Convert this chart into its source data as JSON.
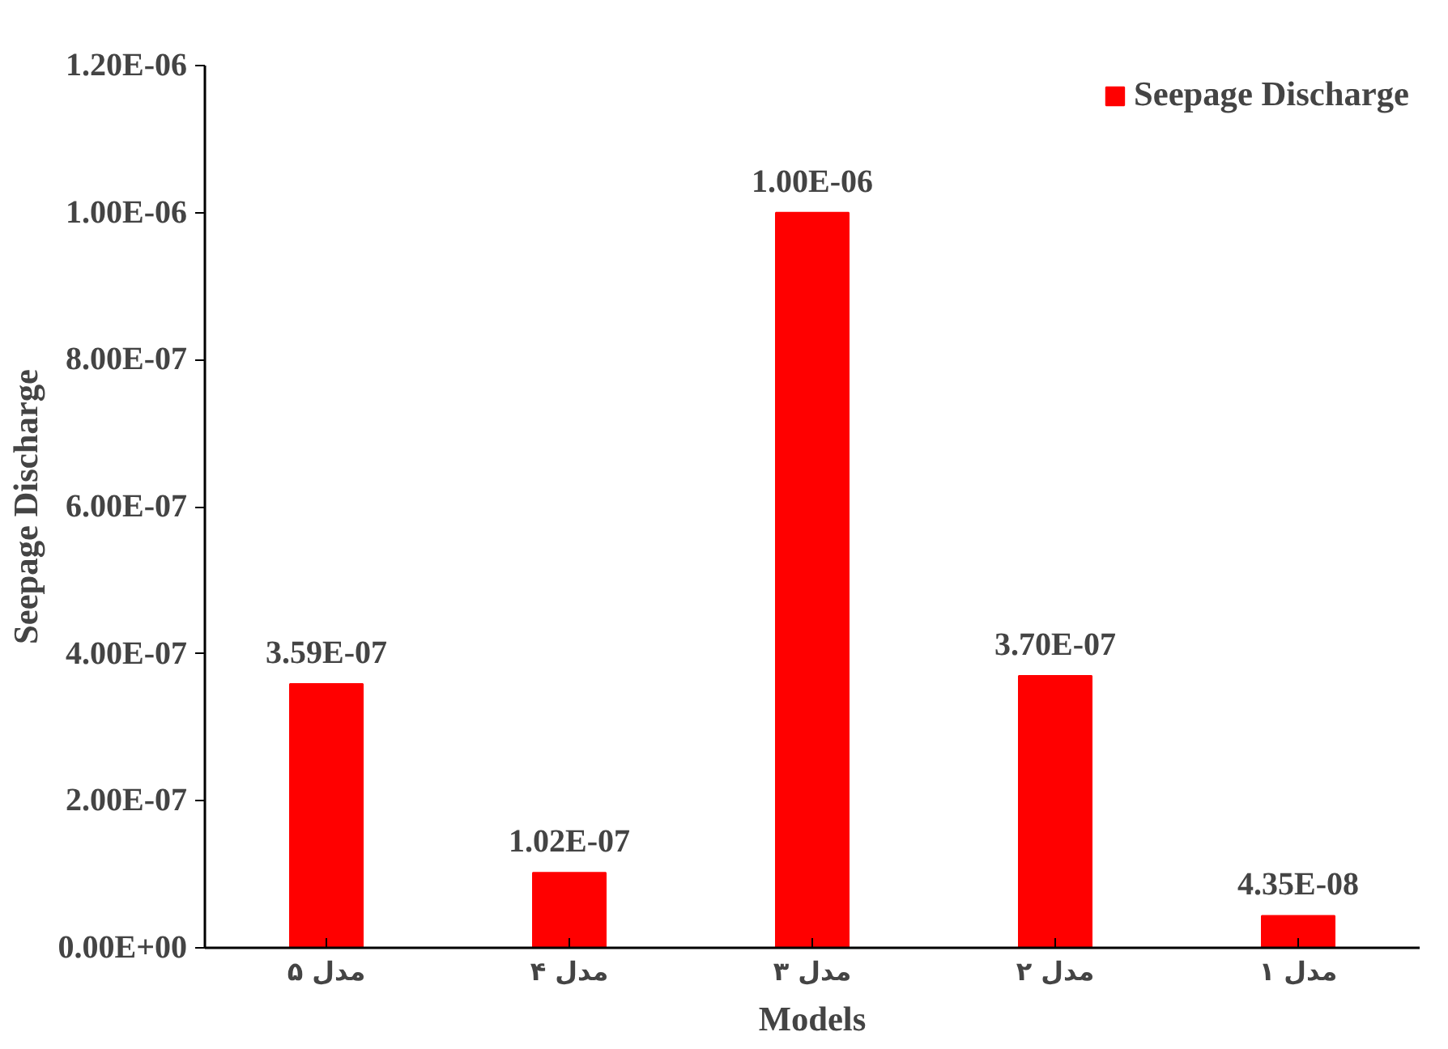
{
  "chart_data": {
    "type": "bar",
    "xlabel": "Models",
    "ylabel": "Seepage Discharge",
    "categories": [
      "مدل ۵",
      "مدل ۴",
      "مدل ۳",
      "مدل ۲",
      "مدل ۱"
    ],
    "series": [
      {
        "name": "Seepage Discharge",
        "color": "#ff0000",
        "values": [
          3.59e-07,
          1.02e-07,
          1e-06,
          3.7e-07,
          4.35e-08
        ],
        "value_labels": [
          "3.59E-07",
          "1.02E-07",
          "1.00E-06",
          "3.70E-07",
          "4.35E-08"
        ]
      }
    ],
    "ylim": [
      0,
      1.2e-06
    ],
    "yticks": [
      {
        "value": 0,
        "label": "0.00E+00"
      },
      {
        "value": 2e-07,
        "label": "2.00E-07"
      },
      {
        "value": 4e-07,
        "label": "4.00E-07"
      },
      {
        "value": 6e-07,
        "label": "6.00E-07"
      },
      {
        "value": 8e-07,
        "label": "8.00E-07"
      },
      {
        "value": 1e-06,
        "label": "1.00E-06"
      },
      {
        "value": 1.2e-06,
        "label": "1.20E-06"
      }
    ],
    "grid": false,
    "legend": "top right"
  }
}
